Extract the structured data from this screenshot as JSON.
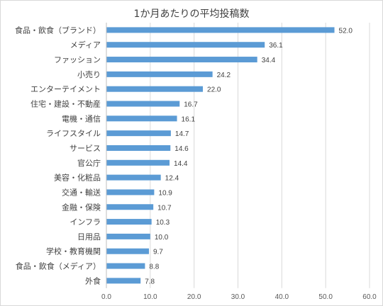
{
  "chart_data": {
    "type": "bar",
    "orientation": "horizontal",
    "title": "1か月あたりの平均投稿数",
    "xlabel": "",
    "ylabel": "",
    "categories": [
      "食品・飲食（ブランド）",
      "メディア",
      "ファッション",
      "小売り",
      "エンターテイメント",
      "住宅・建設・不動産",
      "電機・通信",
      "ライフスタイル",
      "サービス",
      "官公庁",
      "美容・化粧品",
      "交通・輸送",
      "金融・保険",
      "インフラ",
      "日用品",
      "学校・教育機関",
      "食品・飲食（メディア）",
      "外食"
    ],
    "values": [
      52.0,
      36.1,
      34.4,
      24.2,
      22.0,
      16.7,
      16.1,
      14.7,
      14.6,
      14.4,
      12.4,
      10.9,
      10.7,
      10.3,
      10.0,
      9.7,
      8.8,
      7.8
    ],
    "value_labels": [
      "52.0",
      "36.1",
      "34.4",
      "24.2",
      "22.0",
      "16.7",
      "16.1",
      "14.7",
      "14.6",
      "14.4",
      "12.4",
      "10.9",
      "10.7",
      "10.3",
      "10.0",
      "9.7",
      "8.8",
      "7.8"
    ],
    "xlim": [
      0,
      60
    ],
    "x_ticks": [
      0,
      10,
      20,
      30,
      40,
      50,
      60
    ],
    "x_tick_labels": [
      "0.0",
      "10.0",
      "20.0",
      "30.0",
      "40.0",
      "50.0",
      "60.0"
    ],
    "grid": true,
    "legend": "none",
    "bar_color": "#5b9bd5",
    "grid_color": "#d9d9d9"
  }
}
